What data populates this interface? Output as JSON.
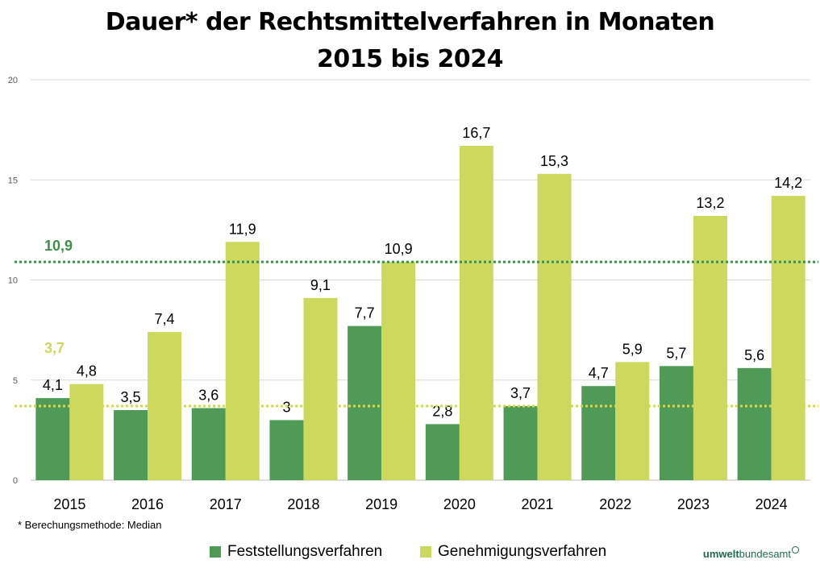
{
  "title": {
    "line1": "Dauer* der Rechtsmittelverfahren in Monaten",
    "line2": "2015 bis 2024"
  },
  "footnote": "* Berechungsmethode: Median",
  "logo": {
    "part1": "umwelt",
    "part2": "bundesamt"
  },
  "chart_data": {
    "type": "bar",
    "categories": [
      "2015",
      "2016",
      "2017",
      "2018",
      "2019",
      "2020",
      "2021",
      "2022",
      "2023",
      "2024"
    ],
    "series": [
      {
        "name": "Feststellungsverfahren",
        "color": "#4e9a56",
        "values": [
          4.1,
          3.5,
          3.6,
          3,
          7.7,
          2.8,
          3.7,
          4.7,
          5.7,
          5.6
        ],
        "labels": [
          "4,1",
          "3,5",
          "3,6",
          "3",
          "7,7",
          "2,8",
          "3,7",
          "4,7",
          "5,7",
          "5,6"
        ]
      },
      {
        "name": "Genehmigungsverfahren",
        "color": "#cdd95c",
        "values": [
          4.8,
          7.4,
          11.9,
          9.1,
          10.9,
          16.7,
          15.3,
          5.9,
          13.2,
          14.2
        ],
        "labels": [
          "4,8",
          "7,4",
          "11,9",
          "9,1",
          "10,9",
          "16,7",
          "15,3",
          "5,9",
          "13,2",
          "14,2"
        ]
      }
    ],
    "reference_lines": [
      {
        "value": 10.9,
        "label": "10,9",
        "color": "#3f8f4c"
      },
      {
        "value": 3.7,
        "label": "3,7",
        "color": "#cdd95c"
      }
    ],
    "ylim": [
      0,
      20
    ],
    "yticks": [
      0,
      5,
      10,
      15,
      20
    ],
    "grid": true,
    "legend": "bottom-center",
    "title": "Dauer* der Rechtsmittelverfahren in Monaten 2015 bis 2024",
    "xlabel": "",
    "ylabel": ""
  }
}
